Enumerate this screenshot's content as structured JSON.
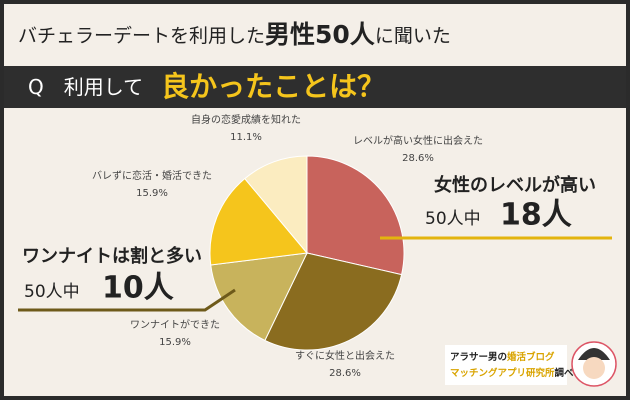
{
  "header": {
    "title_parts": [
      "バチェラーデートを利用した",
      "男性50人",
      "に聞いた"
    ],
    "question_parts": [
      "Q　利用して",
      "良かったことは？"
    ]
  },
  "callouts": [
    {
      "headline": "女性のレベルが高い",
      "prefix": "50人中",
      "count": "18人"
    },
    {
      "headline": "ワンナイトは割と多い",
      "prefix": "50人中",
      "count": "10人"
    }
  ],
  "credit": {
    "parts": [
      "アラサー男の",
      "婚活ブログ",
      "マッチングアプリ研究所",
      "調べ"
    ]
  },
  "chart_data": {
    "type": "pie",
    "categories": [
      "レベルが高い女性に出会えた",
      "すぐに女性と出会えた",
      "ワンナイトができた",
      "バレずに恋活・婚活できた",
      "自身の恋愛成績を知れた"
    ],
    "values": [
      28.6,
      28.6,
      15.9,
      15.9,
      11.1
    ],
    "value_labels": [
      "28.6%",
      "28.6%",
      "15.9%",
      "15.9%",
      "11.1%"
    ],
    "colors": [
      "#c8635c",
      "#8a6c1f",
      "#c8b35c",
      "#f5c51c",
      "#fbecc0"
    ]
  }
}
